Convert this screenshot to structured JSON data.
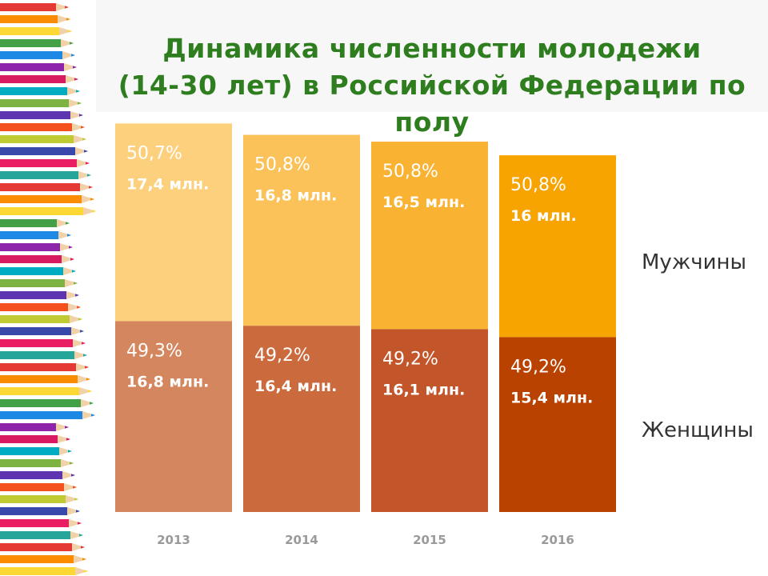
{
  "title": {
    "line1": "Динамика численности молодежи",
    "line2": "(14-30 лет) в Российской Федерации по",
    "line3": "полу"
  },
  "chart_data": {
    "type": "bar",
    "stacked": true,
    "categories": [
      "2013",
      "2014",
      "2015",
      "2016"
    ],
    "series": [
      {
        "name": "Женщины",
        "values": [
          16.8,
          16.4,
          16.1,
          15.4
        ],
        "percent_labels": [
          "49,3%",
          "49,2%",
          "49,2%",
          "49,2%"
        ],
        "value_labels": [
          "16,8 млн.",
          "16,4 млн.",
          "16,1 млн.",
          "15,4 млн."
        ],
        "colors": [
          "#d4865e",
          "#cb6a3d",
          "#c2562a",
          "#b94200"
        ]
      },
      {
        "name": "Мужчины",
        "values": [
          17.4,
          16.8,
          16.5,
          16.0
        ],
        "percent_labels": [
          "50,7%",
          "50,8%",
          "50,8%",
          "50,8%"
        ],
        "value_labels": [
          "17,4 млн.",
          "16,8 млн.",
          "16,5 млн.",
          "16 млн."
        ],
        "colors": [
          "#fdd07d",
          "#fcc25a",
          "#f9b232",
          "#f7a300"
        ]
      }
    ],
    "legend_position": "right",
    "grid": false,
    "ylim": [
      0,
      34.2
    ]
  }
}
